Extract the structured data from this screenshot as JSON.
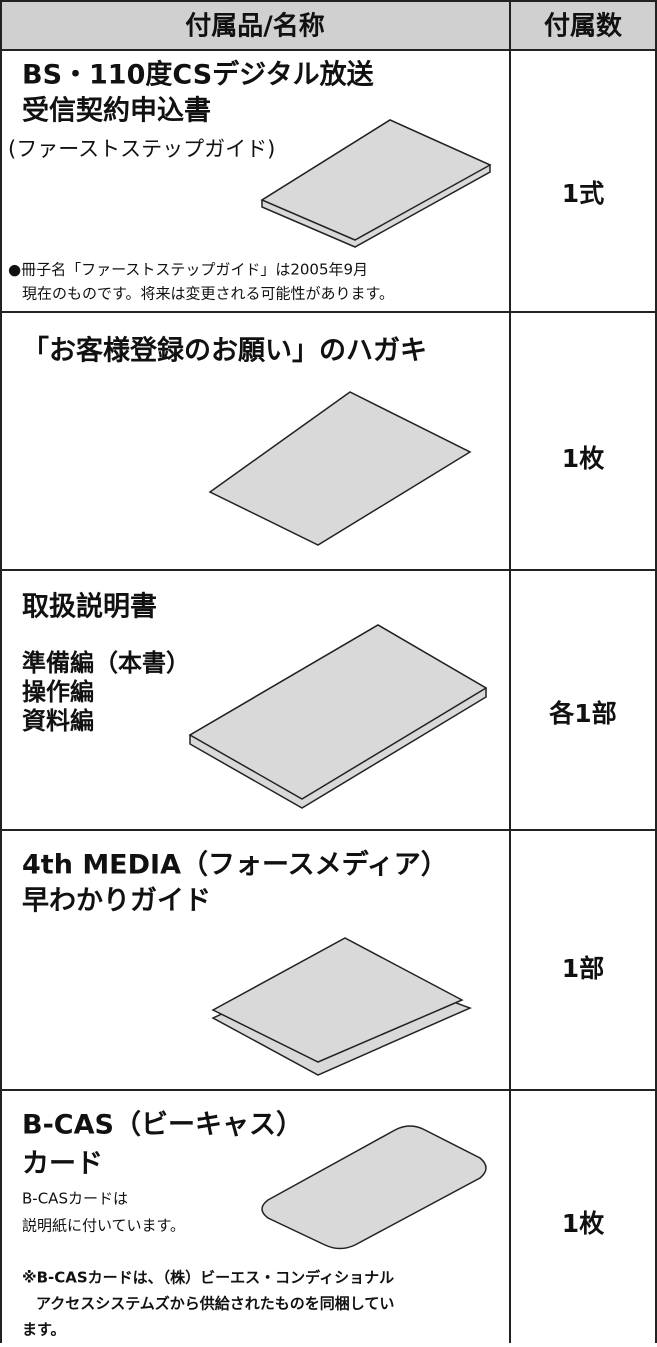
{
  "table": {
    "header": [
      "付属品/名称",
      "付属数"
    ],
    "rows": [
      {
        "name": [
          "BS・110度CSデジタル放送",
          "受信契約申込書"
        ],
        "sub": [
          "(ファーストステップガイド)"
        ],
        "note": [
          "●冊子名「ファーストステップガイド」は2005年9月",
          "現在のものです。将来は変更される可能性があります。"
        ],
        "qty": "1式"
      },
      {
        "name": [
          "「お客様登録のお願い」のハガキ"
        ],
        "qty": "1枚"
      },
      {
        "name": [
          "取扱説明書"
        ],
        "sub": [
          "準備編（本書）",
          "操作編",
          "資料編"
        ],
        "qty": "各1部"
      },
      {
        "name": [
          "4th MEDIA（フォースメディア）",
          "早わかりガイド"
        ],
        "qty": "1部"
      },
      {
        "name": [
          "B-CAS（ビーキャス）",
          "カード"
        ],
        "sub": [
          "B-CASカードは",
          "説明紙に付いています。"
        ],
        "note": [
          "※B-CASカードは、（株）ビーエス・コンディショナル",
          "アクセスシステムズから供給されたものを同梱してい",
          "ます。"
        ],
        "qty": "1枚"
      }
    ]
  }
}
